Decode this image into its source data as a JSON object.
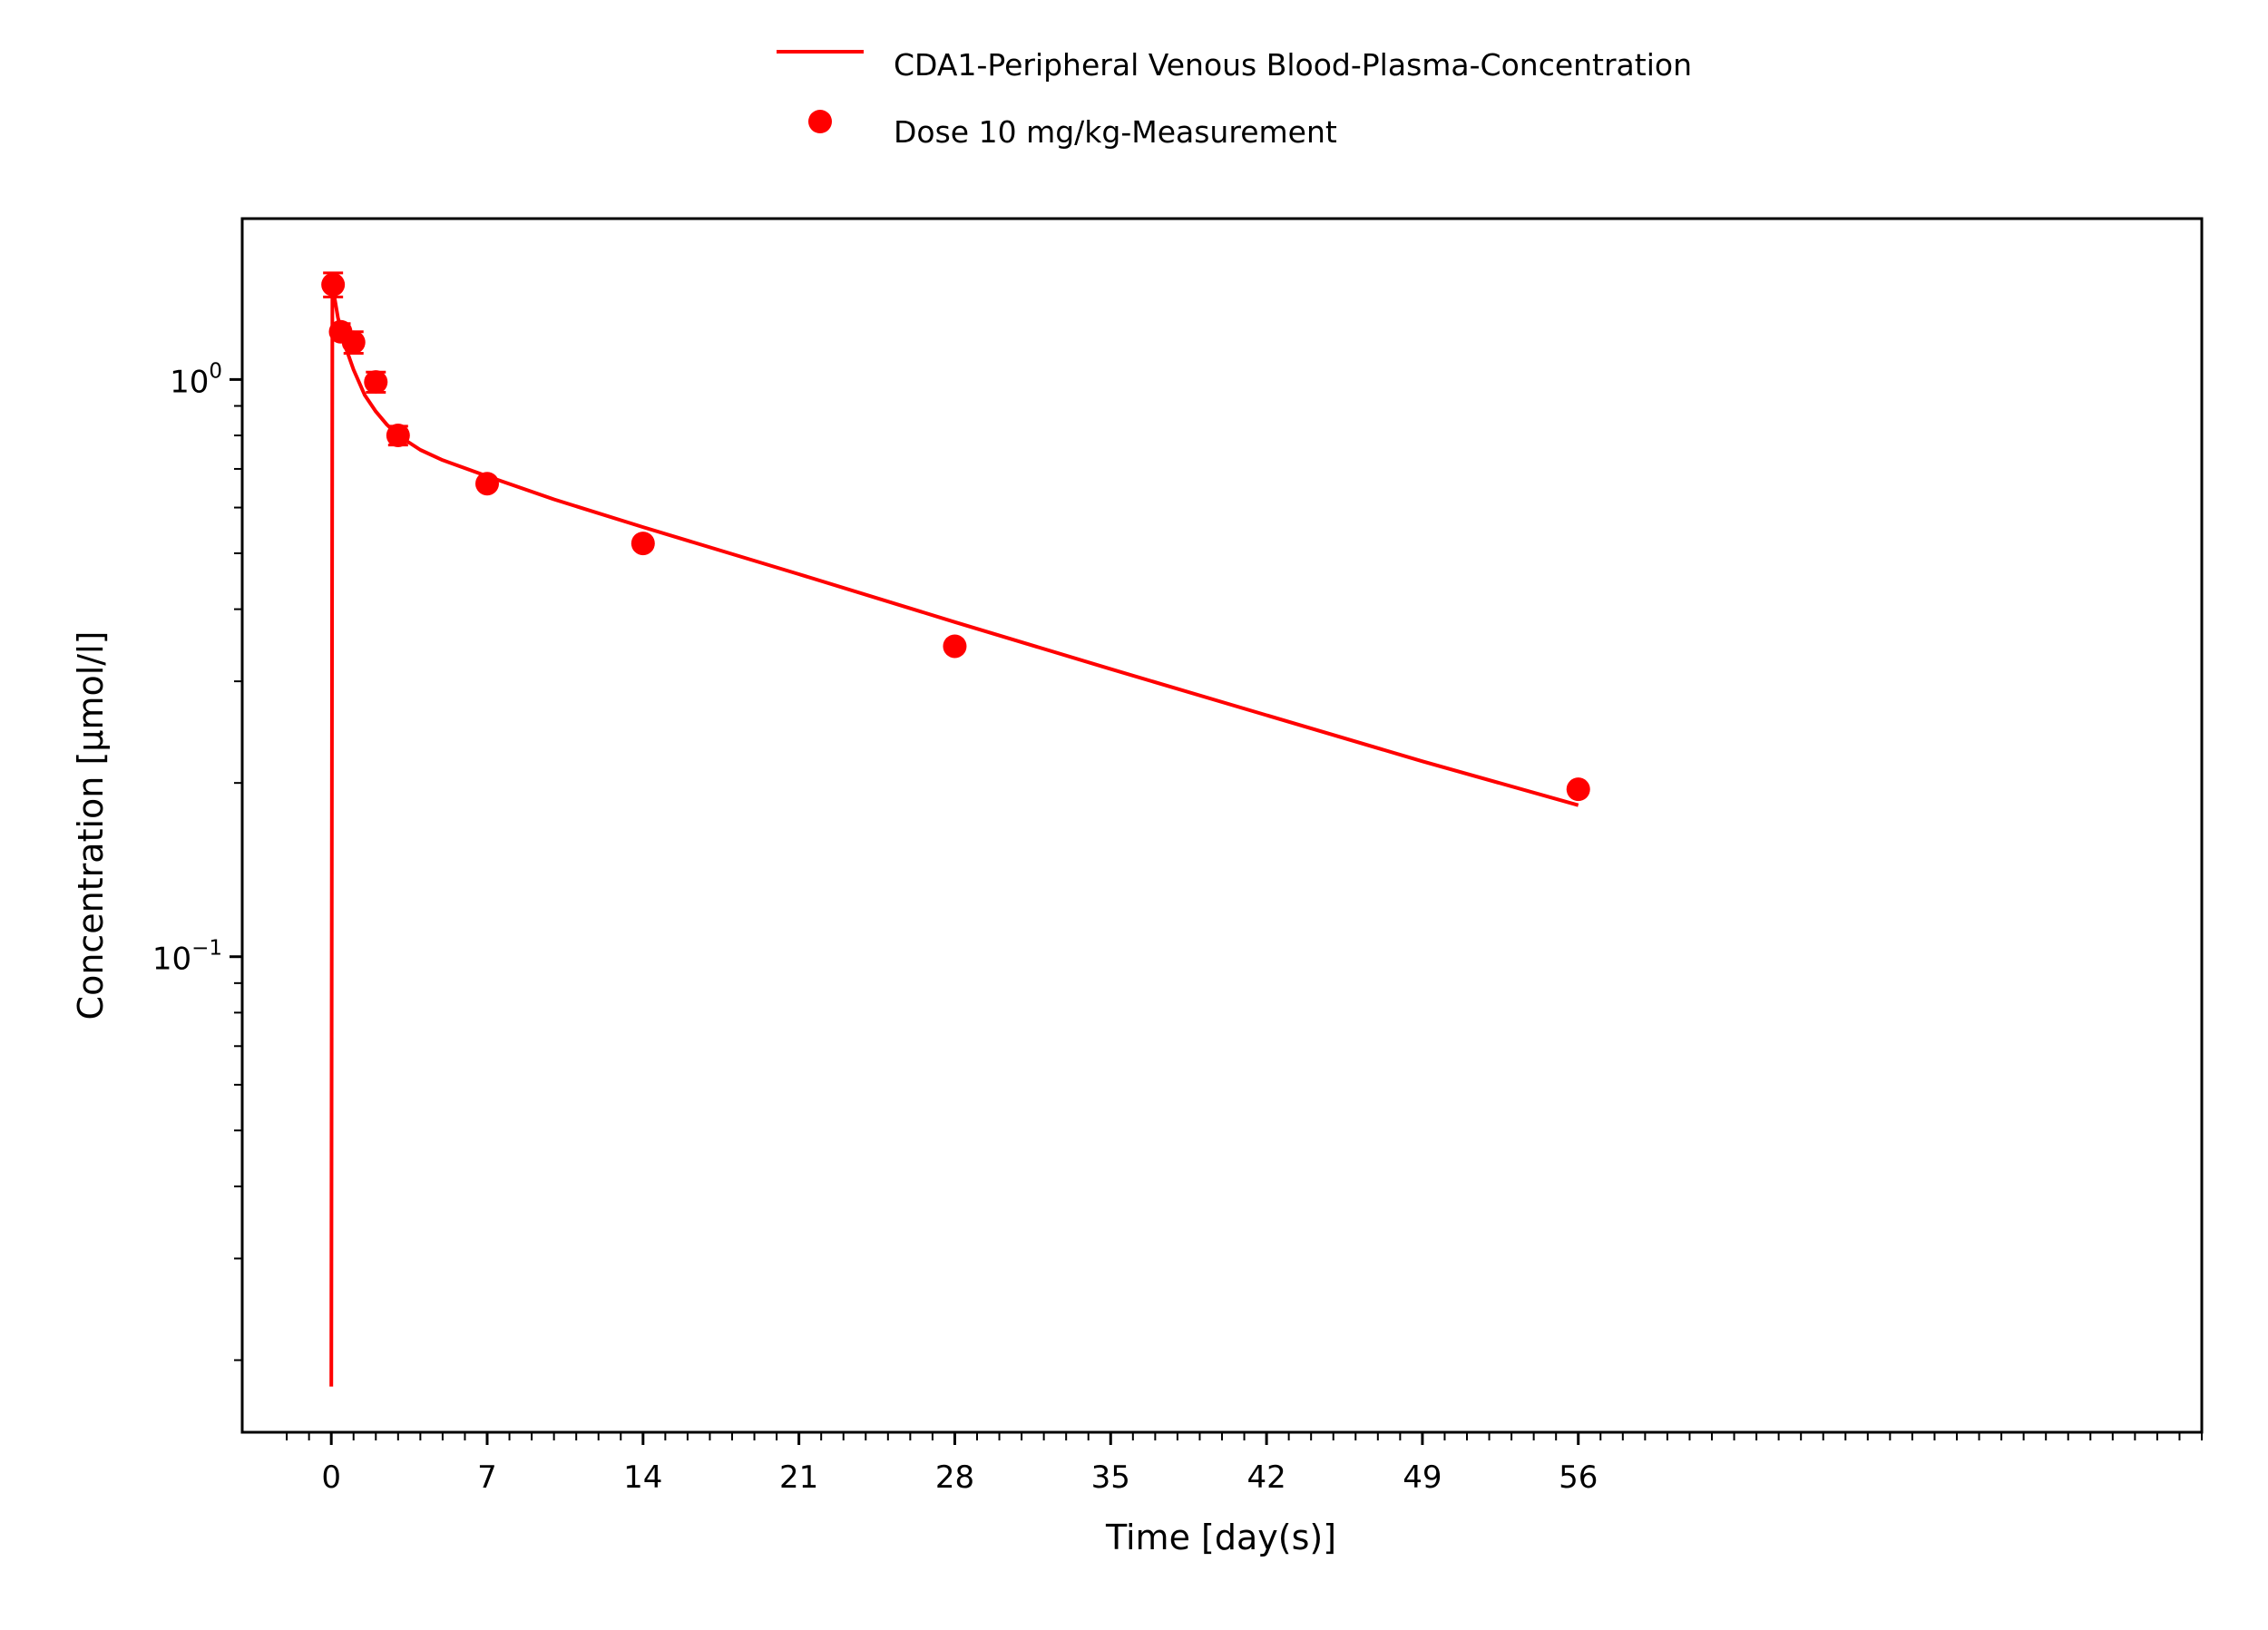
{
  "chart_data": {
    "type": "line",
    "x_axis": {
      "label": "Time [day(s)]",
      "range": [
        -4,
        84
      ],
      "ticks": [
        0,
        7,
        14,
        21,
        28,
        35,
        42,
        49,
        56
      ],
      "tick_labels": [
        "0",
        "7",
        "14",
        "21",
        "28",
        "35",
        "42",
        "49",
        "56"
      ]
    },
    "y_axis": {
      "label": "Concentration [µmol/l]",
      "scale": "log",
      "range": [
        0.015,
        1.9
      ],
      "major_ticks": [
        {
          "value": 1,
          "base": "10",
          "exponent": "0"
        },
        {
          "value": 0.1,
          "base": "10",
          "exponent": "−1"
        }
      ]
    },
    "grid": false,
    "legend_position": "top",
    "series": [
      {
        "name": "CDA1-Peripheral Venous Blood-Plasma-Concentration",
        "kind": "line",
        "color": "#ff0000",
        "x": [
          0,
          0.05,
          0.1,
          0.3,
          0.6,
          1.0,
          1.5,
          2.0,
          2.5,
          3.0,
          4,
          5,
          7,
          10,
          14,
          21,
          28,
          35,
          42,
          49,
          56
        ],
        "y": [
          0.018,
          1.5,
          1.42,
          1.28,
          1.15,
          1.04,
          0.94,
          0.88,
          0.835,
          0.8,
          0.755,
          0.725,
          0.68,
          0.62,
          0.555,
          0.46,
          0.38,
          0.315,
          0.262,
          0.218,
          0.183
        ]
      },
      {
        "name": "Dose 10 mg/kg-Measurement",
        "kind": "scatter",
        "color": "#ff0000",
        "x": [
          0.08,
          0.42,
          1.0,
          2.0,
          3.0,
          7.0,
          14.0,
          28.0,
          56.0
        ],
        "y": [
          1.46,
          1.21,
          1.16,
          0.99,
          0.8,
          0.66,
          0.52,
          0.345,
          0.195
        ],
        "error": [
          0.07,
          0.04,
          0.05,
          0.04,
          0.03,
          0.0,
          0.0,
          0.0,
          0.0
        ]
      }
    ]
  }
}
